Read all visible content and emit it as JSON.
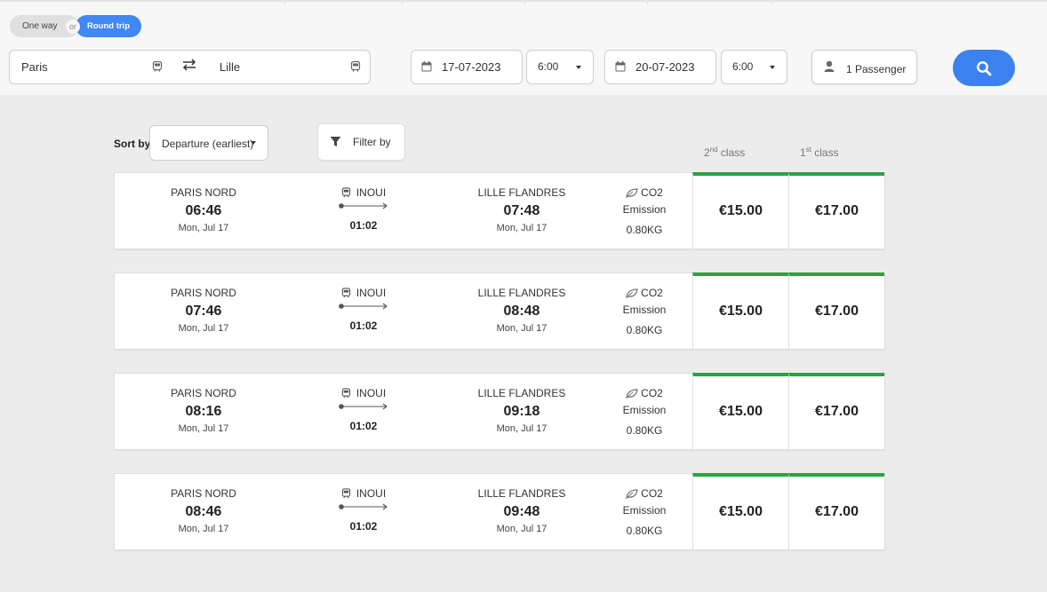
{
  "trip_toggle": {
    "one_way": "One way",
    "or": "or",
    "round_trip": "Round trip"
  },
  "search": {
    "origin": "Paris",
    "destination": "Lille",
    "outbound_date": "17-07-2023",
    "outbound_time": "6:00",
    "return_date": "20-07-2023",
    "return_time": "6:00",
    "passengers": "1 Passenger"
  },
  "results_header": {
    "sort_label": "Sort by",
    "sort_value": "Departure (earliest)",
    "filter_label": "Filter by",
    "class2": {
      "num": "2",
      "sup": "nd",
      "label": " class"
    },
    "class1": {
      "num": "1",
      "sup": "st",
      "label": " class"
    }
  },
  "results": [
    {
      "dep_station": "PARIS NORD",
      "dep_time": "06:46",
      "dep_date": "Mon, Jul 17",
      "operator": "INOUI",
      "duration": "01:02",
      "arr_station": "LILLE FLANDRES",
      "arr_time": "07:48",
      "arr_date": "Mon, Jul 17",
      "co2_label": "CO2",
      "co2_emission": "Emission",
      "co2_value": "0.80KG",
      "price_2nd": "€15.00",
      "price_1st": "€17.00"
    },
    {
      "dep_station": "PARIS NORD",
      "dep_time": "07:46",
      "dep_date": "Mon, Jul 17",
      "operator": "INOUI",
      "duration": "01:02",
      "arr_station": "LILLE FLANDRES",
      "arr_time": "08:48",
      "arr_date": "Mon, Jul 17",
      "co2_label": "CO2",
      "co2_emission": "Emission",
      "co2_value": "0.80KG",
      "price_2nd": "€15.00",
      "price_1st": "€17.00"
    },
    {
      "dep_station": "PARIS NORD",
      "dep_time": "08:16",
      "dep_date": "Mon, Jul 17",
      "operator": "INOUI",
      "duration": "01:02",
      "arr_station": "LILLE FLANDRES",
      "arr_time": "09:18",
      "arr_date": "Mon, Jul 17",
      "co2_label": "CO2",
      "co2_emission": "Emission",
      "co2_value": "0.80KG",
      "price_2nd": "€15.00",
      "price_1st": "€17.00"
    },
    {
      "dep_station": "PARIS NORD",
      "dep_time": "08:46",
      "dep_date": "Mon, Jul 17",
      "operator": "INOUI",
      "duration": "01:02",
      "arr_station": "LILLE FLANDRES",
      "arr_time": "09:48",
      "arr_date": "Mon, Jul 17",
      "co2_label": "CO2",
      "co2_emission": "Emission",
      "co2_value": "0.80KG",
      "price_2nd": "€15.00",
      "price_1st": "€17.00"
    }
  ],
  "icons": {
    "train": "train-icon",
    "swap": "swap-arrows-icon",
    "calendar": "calendar-icon",
    "person": "person-icon",
    "search": "search-icon",
    "filter": "filter-funnel-icon",
    "leaf": "leaf-icon"
  },
  "colors": {
    "accent": "#3b82ee",
    "price_bar": "#2aa240",
    "page_bg": "#ececec",
    "header_bg": "#f7f7f7"
  }
}
